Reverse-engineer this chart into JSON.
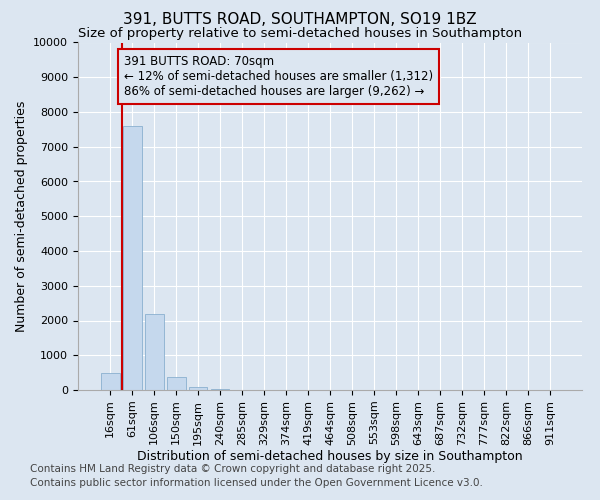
{
  "title_line1": "391, BUTTS ROAD, SOUTHAMPTON, SO19 1BZ",
  "title_line2": "Size of property relative to semi-detached houses in Southampton",
  "xlabel": "Distribution of semi-detached houses by size in Southampton",
  "ylabel": "Number of semi-detached properties",
  "categories": [
    "16sqm",
    "61sqm",
    "106sqm",
    "150sqm",
    "195sqm",
    "240sqm",
    "285sqm",
    "329sqm",
    "374sqm",
    "419sqm",
    "464sqm",
    "508sqm",
    "553sqm",
    "598sqm",
    "643sqm",
    "687sqm",
    "732sqm",
    "777sqm",
    "822sqm",
    "866sqm",
    "911sqm"
  ],
  "values": [
    500,
    7600,
    2200,
    380,
    100,
    20,
    8,
    4,
    2,
    1,
    1,
    0,
    0,
    0,
    0,
    0,
    0,
    0,
    0,
    0,
    0
  ],
  "bar_color": "#c5d8ed",
  "bar_edge_color": "#8ab0d0",
  "background_color": "#dce6f1",
  "grid_color": "#ffffff",
  "property_line_color": "#cc0000",
  "property_line_x": 0.55,
  "annotation_text": "391 BUTTS ROAD: 70sqm\n← 12% of semi-detached houses are smaller (1,312)\n86% of semi-detached houses are larger (9,262) →",
  "annotation_box_color": "#cc0000",
  "ylim": [
    0,
    10000
  ],
  "yticks": [
    0,
    1000,
    2000,
    3000,
    4000,
    5000,
    6000,
    7000,
    8000,
    9000,
    10000
  ],
  "footer_line1": "Contains HM Land Registry data © Crown copyright and database right 2025.",
  "footer_line2": "Contains public sector information licensed under the Open Government Licence v3.0.",
  "title_fontsize": 11,
  "subtitle_fontsize": 9.5,
  "axis_label_fontsize": 9,
  "tick_fontsize": 8,
  "annotation_fontsize": 8.5,
  "footer_fontsize": 7.5
}
